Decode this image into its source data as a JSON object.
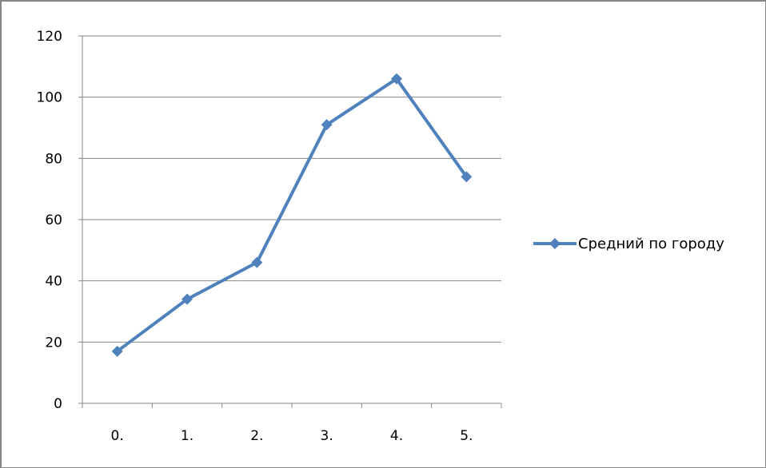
{
  "chart_data": {
    "type": "line",
    "categories": [
      "0.",
      "1.",
      "2.",
      "3.",
      "4.",
      "5."
    ],
    "series": [
      {
        "name": "Средний по городу",
        "values": [
          17,
          34,
          46,
          91,
          106,
          74
        ],
        "color": "#4F81BD"
      }
    ],
    "ylim": [
      0,
      120
    ],
    "yticks": [
      "0",
      "20",
      "40",
      "60",
      "80",
      "100",
      "120"
    ],
    "grid": true,
    "legend_position": "right",
    "title": "",
    "xlabel": "",
    "ylabel": ""
  }
}
